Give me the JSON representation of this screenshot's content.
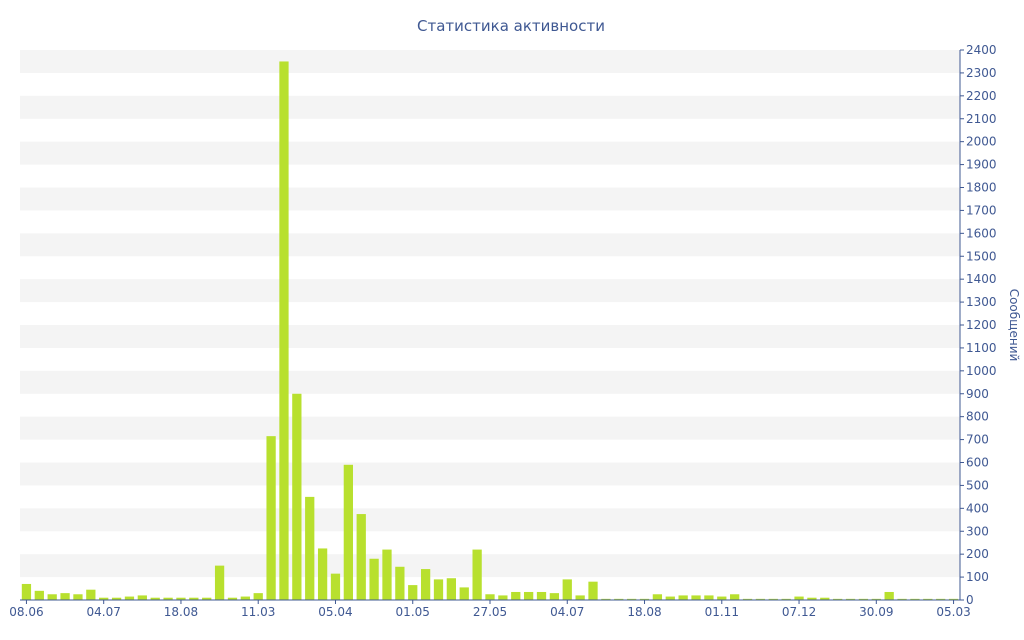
{
  "colors": {
    "bar": "#b8e02e",
    "text": "#3f5892",
    "axis": "#3f5892",
    "band": "#f4f4f4"
  },
  "chart_data": {
    "type": "bar",
    "title": "Статистика активности",
    "xlabel": "",
    "ylabel": "Сообщений",
    "y_axis_side": "right",
    "ylim": [
      0,
      2400
    ],
    "ytick_step": 100,
    "grid": "alternating horizontal bands",
    "legend": "none",
    "x_tick_labels": [
      {
        "index": 0,
        "label": "08.06"
      },
      {
        "index": 6,
        "label": "04.07"
      },
      {
        "index": 12,
        "label": "18.08"
      },
      {
        "index": 18,
        "label": "11.03"
      },
      {
        "index": 24,
        "label": "05.04"
      },
      {
        "index": 30,
        "label": "01.05"
      },
      {
        "index": 36,
        "label": "27.05"
      },
      {
        "index": 42,
        "label": "04.07"
      },
      {
        "index": 48,
        "label": "18.08"
      },
      {
        "index": 54,
        "label": "01.11"
      },
      {
        "index": 60,
        "label": "07.12"
      },
      {
        "index": 66,
        "label": "30.09"
      },
      {
        "index": 72,
        "label": "05.03"
      }
    ],
    "values": [
      70,
      40,
      25,
      30,
      25,
      45,
      10,
      10,
      15,
      20,
      10,
      10,
      10,
      10,
      10,
      150,
      10,
      15,
      30,
      715,
      2350,
      900,
      450,
      225,
      115,
      590,
      375,
      180,
      220,
      145,
      65,
      135,
      90,
      95,
      55,
      220,
      25,
      20,
      35,
      35,
      35,
      30,
      90,
      20,
      80,
      5,
      5,
      5,
      5,
      25,
      15,
      20,
      20,
      20,
      15,
      25,
      5,
      5,
      5,
      5,
      15,
      10,
      10,
      5,
      5,
      5,
      5,
      35,
      5,
      5,
      5,
      5,
      5
    ]
  }
}
